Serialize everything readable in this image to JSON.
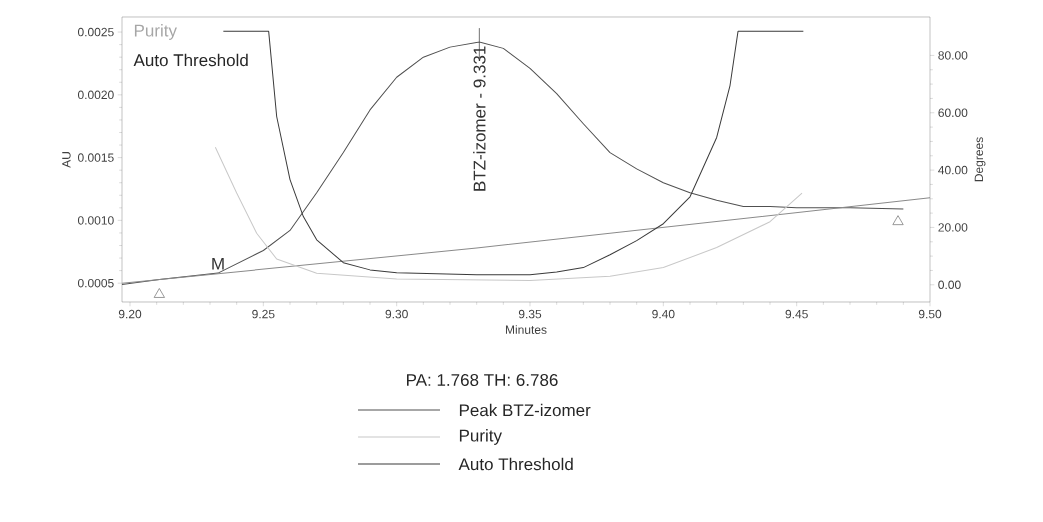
{
  "chart_data": {
    "type": "line",
    "xlabel": "Minutes",
    "ylabel": "AU",
    "y2label": "Degrees",
    "xlim": [
      9.197,
      9.5
    ],
    "ylim": [
      0.00035,
      0.00262
    ],
    "y2lim": [
      -6,
      93.4
    ],
    "xticks": [
      {
        "value": 9.2,
        "label": "9.20"
      },
      {
        "value": 9.25,
        "label": "9.25"
      },
      {
        "value": 9.3,
        "label": "9.30"
      },
      {
        "value": 9.35,
        "label": "9.35"
      },
      {
        "value": 9.4,
        "label": "9.40"
      },
      {
        "value": 9.45,
        "label": "9.45"
      },
      {
        "value": 9.5,
        "label": "9.50"
      }
    ],
    "yticks": [
      {
        "value": 0.0005,
        "label": "0.0005"
      },
      {
        "value": 0.001,
        "label": "0.0010"
      },
      {
        "value": 0.0015,
        "label": "0.0015"
      },
      {
        "value": 0.002,
        "label": "0.0020"
      },
      {
        "value": 0.0025,
        "label": "0.0025"
      }
    ],
    "y2ticks": [
      {
        "value": 0,
        "label": "0.00"
      },
      {
        "value": 20,
        "label": "20.00"
      },
      {
        "value": 40,
        "label": "40.00"
      },
      {
        "value": 60,
        "label": "60.00"
      },
      {
        "value": 80,
        "label": "80.00"
      }
    ],
    "legend": "bottom",
    "line_style": "solid",
    "series": [
      {
        "name": "Peak BTZ-izomer",
        "color": "#505050",
        "x": [
          9.197,
          9.211,
          9.233,
          9.25,
          9.26,
          9.27,
          9.28,
          9.29,
          9.3,
          9.31,
          9.32,
          9.331,
          9.34,
          9.35,
          9.36,
          9.37,
          9.38,
          9.39,
          9.4,
          9.41,
          9.42,
          9.43,
          9.44,
          9.45,
          9.47,
          9.49
        ],
        "values": [
          0.00049,
          0.00053,
          0.00058,
          0.00076,
          0.00092,
          0.00122,
          0.00154,
          0.00188,
          0.00214,
          0.0023,
          0.00238,
          0.00242,
          0.00237,
          0.00221,
          0.00201,
          0.00177,
          0.00154,
          0.00141,
          0.0013,
          0.00122,
          0.00116,
          0.00111,
          0.00111,
          0.0011,
          0.0011,
          0.00109
        ]
      },
      {
        "name": "Purity",
        "color": "#c8c8c8",
        "axis": "y2",
        "x": [
          9.232,
          9.24,
          9.2475,
          9.255,
          9.27,
          9.3,
          9.35,
          9.38,
          9.4,
          9.42,
          9.44,
          9.452
        ],
        "values": [
          48,
          32,
          18,
          9,
          4,
          2,
          1.5,
          3,
          6,
          13,
          22,
          32
        ]
      },
      {
        "name": "Auto Threshold",
        "color": "#3a3a3a",
        "axis": "y2",
        "x": [
          9.235,
          9.252,
          9.255,
          9.26,
          9.265,
          9.27,
          9.28,
          9.29,
          9.3,
          9.33,
          9.35,
          9.36,
          9.37,
          9.38,
          9.39,
          9.4,
          9.41,
          9.42,
          9.425,
          9.428,
          9.4525
        ],
        "values": [
          88.4,
          88.4,
          58.7,
          36.7,
          23.8,
          15.7,
          7.7,
          5.2,
          4.2,
          3.5,
          3.5,
          4.5,
          6,
          10.5,
          15.4,
          21.3,
          30.7,
          51.4,
          69.5,
          88.4,
          88.4
        ]
      },
      {
        "color": "#8a8a8a",
        "x": [
          9.197,
          9.33,
          9.5
        ],
        "values": [
          0.0005,
          0.00078,
          0.00118
        ]
      },
      {
        "type": "scatter",
        "marker": "triangle",
        "color": "#808080",
        "x": [
          9.211,
          9.488
        ],
        "values": [
          0.00041,
          0.00099
        ]
      }
    ],
    "annotations": [
      "Purity",
      "Auto Threshold",
      "PA: 1.768  TH: 6.786",
      {
        "text": "M",
        "x": 9.233,
        "y": 0.00058
      },
      {
        "text": "BTZ-izomer - 9.331",
        "x": 9.331,
        "y": 0.00242
      }
    ]
  }
}
